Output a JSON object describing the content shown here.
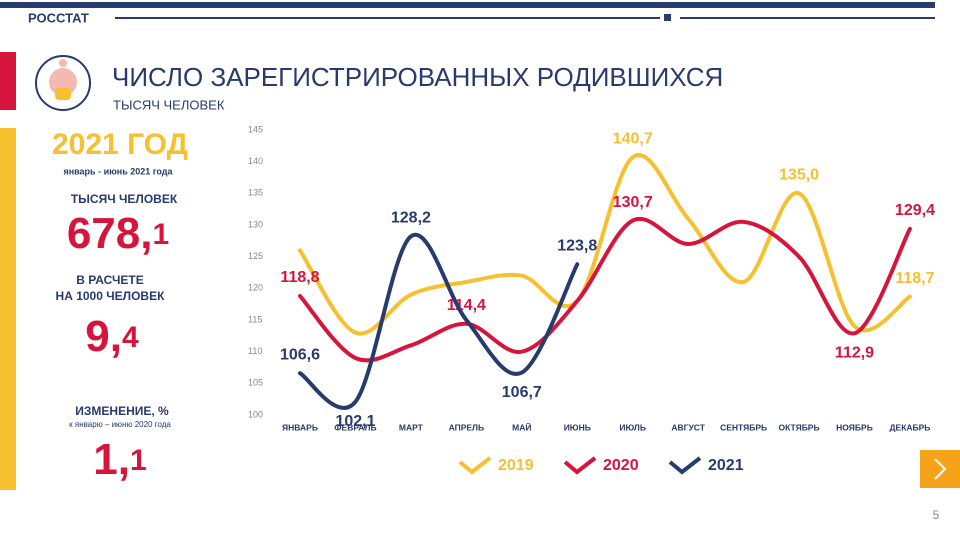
{
  "header": {
    "org": "РОССТАТ",
    "page_number": "5"
  },
  "summary": {
    "year": "2021 ГОД",
    "period": "январь - июнь 2021 года",
    "total_label": "ТЫСЯЧ ЧЕЛОВЕК",
    "total": {
      "main": "678,",
      "fraction": "1"
    },
    "rate_label": [
      "В РАСЧЕТЕ",
      "НА 1000 ЧЕЛОВЕК"
    ],
    "rate": {
      "main": "9,",
      "fraction": "4"
    },
    "change_label": "ИЗМЕНЕНИЕ, %",
    "change_note": "к январю – июню 2020 года",
    "change": {
      "main": "1,",
      "fraction": "1"
    }
  },
  "chart_data": {
    "type": "line",
    "title": "ЧИСЛО ЗАРЕГИСТРИРОВАННЫХ РОДИВШИХСЯ",
    "subtitle": "ТЫСЯЧ ЧЕЛОВЕК",
    "categories": [
      "ЯНВАРЬ",
      "ФЕВРАЛЬ",
      "МАРТ",
      "АПРЕЛЬ",
      "МАЙ",
      "ИЮНЬ",
      "ИЮЛЬ",
      "АВГУСТ",
      "СЕНТЯБРЬ",
      "ОКТЯБРЬ",
      "НОЯБРЬ",
      "ДЕКАБРЬ"
    ],
    "ylim": [
      100,
      145
    ],
    "yticks": [
      100,
      105,
      110,
      115,
      120,
      125,
      130,
      135,
      140,
      145
    ],
    "grid": false,
    "legend": "bottom",
    "series": [
      {
        "name": "2019",
        "color": "#f6c02e",
        "values": [
          126,
          113,
          119,
          121,
          122,
          118,
          140.7,
          131,
          121,
          135.0,
          114,
          118.7
        ],
        "value_labels": [
          null,
          null,
          null,
          null,
          null,
          null,
          "140,7",
          null,
          null,
          "135,0",
          null,
          "118,7"
        ]
      },
      {
        "name": "2020",
        "color": "#d7143c",
        "values": [
          118.8,
          109,
          111,
          114.4,
          110,
          118,
          130.7,
          127,
          130.5,
          125,
          112.9,
          129.4
        ],
        "value_labels": [
          "118,8",
          null,
          null,
          "114,4",
          null,
          null,
          "130,7",
          null,
          null,
          null,
          "112,9",
          "129,4"
        ]
      },
      {
        "name": "2021",
        "color": "#283a6e",
        "values": [
          106.6,
          102.1,
          128.2,
          115,
          106.7,
          123.8,
          null,
          null,
          null,
          null,
          null,
          null
        ],
        "value_labels": [
          "106,6",
          "102,1",
          "128,2",
          null,
          "106,7",
          "123,8",
          null,
          null,
          null,
          null,
          null,
          null
        ]
      }
    ]
  }
}
